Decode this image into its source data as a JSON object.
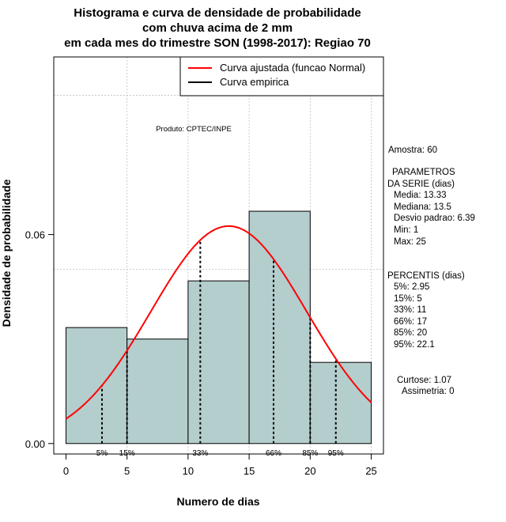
{
  "chart_data": {
    "type": "histogram",
    "title": [
      "Histograma e curva de densidade de probabilidade",
      "com chuva acima de 2 mm",
      "em cada mes do trimestre SON (1998-2017): Regiao 70"
    ],
    "xlabel": "Numero de dias",
    "ylabel": "Densidade de probabilidade",
    "xlim": [
      -1,
      26
    ],
    "ylim": [
      -0.003,
      0.111
    ],
    "x_ticks": [
      0,
      5,
      10,
      15,
      20,
      25
    ],
    "x_tick_labels": [
      "0",
      "5",
      "10",
      "15",
      "20",
      "25"
    ],
    "y_ticks": [
      0.0,
      0.06
    ],
    "y_tick_labels": [
      "0.00",
      "0.06"
    ],
    "grid": true,
    "grid_x": [
      5,
      10,
      15,
      20,
      25
    ],
    "grid_y": [
      0.05,
      0.1
    ],
    "bars": [
      {
        "x0": 0,
        "x1": 5,
        "density": 0.0333
      },
      {
        "x0": 5,
        "x1": 10,
        "density": 0.03
      },
      {
        "x0": 10,
        "x1": 15,
        "density": 0.0467
      },
      {
        "x0": 15,
        "x1": 20,
        "density": 0.0667
      },
      {
        "x0": 20,
        "x1": 25,
        "density": 0.0233
      }
    ],
    "fitted_curve": {
      "name": "Curva ajustada (funcao Normal)",
      "mean": 13.33,
      "sd": 6.39,
      "x_range": [
        0,
        25
      ],
      "color": "#ff0000"
    },
    "empirical_curve": {
      "name": "Curva empirica",
      "color": "#000000"
    },
    "percentiles": [
      {
        "label": "5%",
        "value": 2.95
      },
      {
        "label": "15%",
        "value": 5
      },
      {
        "label": "33%",
        "value": 11
      },
      {
        "label": "66%",
        "value": 17
      },
      {
        "label": "85%",
        "value": 20
      },
      {
        "label": "95%",
        "value": 22.1
      }
    ],
    "legend": {
      "position": "top-right",
      "entries": [
        {
          "label": "Curva ajustada (funcao Normal)",
          "color": "#ff0000"
        },
        {
          "label": "Curva empirica",
          "color": "#000000"
        }
      ]
    },
    "annotation": "Produto: CPTEC/INPE",
    "stats_text": [
      "Amostra: 60",
      "PARAMETROS",
      "DA SERIE (dias)",
      "Media: 13.33",
      "Mediana: 13.5",
      "Desvio padrao: 6.39",
      "Min: 1",
      "Max: 25",
      "PERCENTIS (dias)",
      "5%: 2.95",
      "15%: 5",
      "33%: 11",
      "66%: 17",
      "85%: 20",
      "95%: 22.1",
      "Curtose: 1.07",
      "Assimetria: 0"
    ],
    "colors": {
      "bar_fill": "#b4cdcd",
      "bar_stroke": "#000000",
      "grid": "#bebebe"
    }
  }
}
